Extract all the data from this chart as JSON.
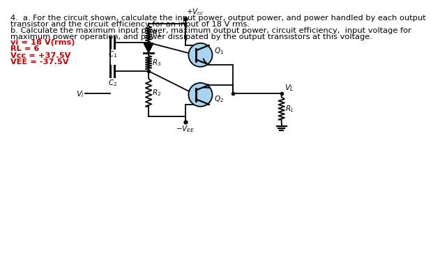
{
  "bg_color": "#ffffff",
  "text_color": "#000000",
  "red_color": "#c00000",
  "line_color": "#000000",
  "transistor_fill": "#a8d4f0",
  "lw": 1.3,
  "fs_text": 8.2,
  "fs_label": 7.5,
  "problem_lines": [
    "4.  a. For the circuit shown, calculate the input power, output power, and power handled by each output",
    "transistor and the circuit efficiency for an input of 18 V rms.",
    "b. Calculate the maximum input power, maximum output power, circuit efficiency,  input voltage for",
    "maximum power operation, and power dissipated by the output transistors at this voltage."
  ],
  "given_lines": [
    "vi = 18 V(rms)",
    "RL = 6",
    "Vcc = +37.5V",
    "VEE = -37.5V"
  ]
}
